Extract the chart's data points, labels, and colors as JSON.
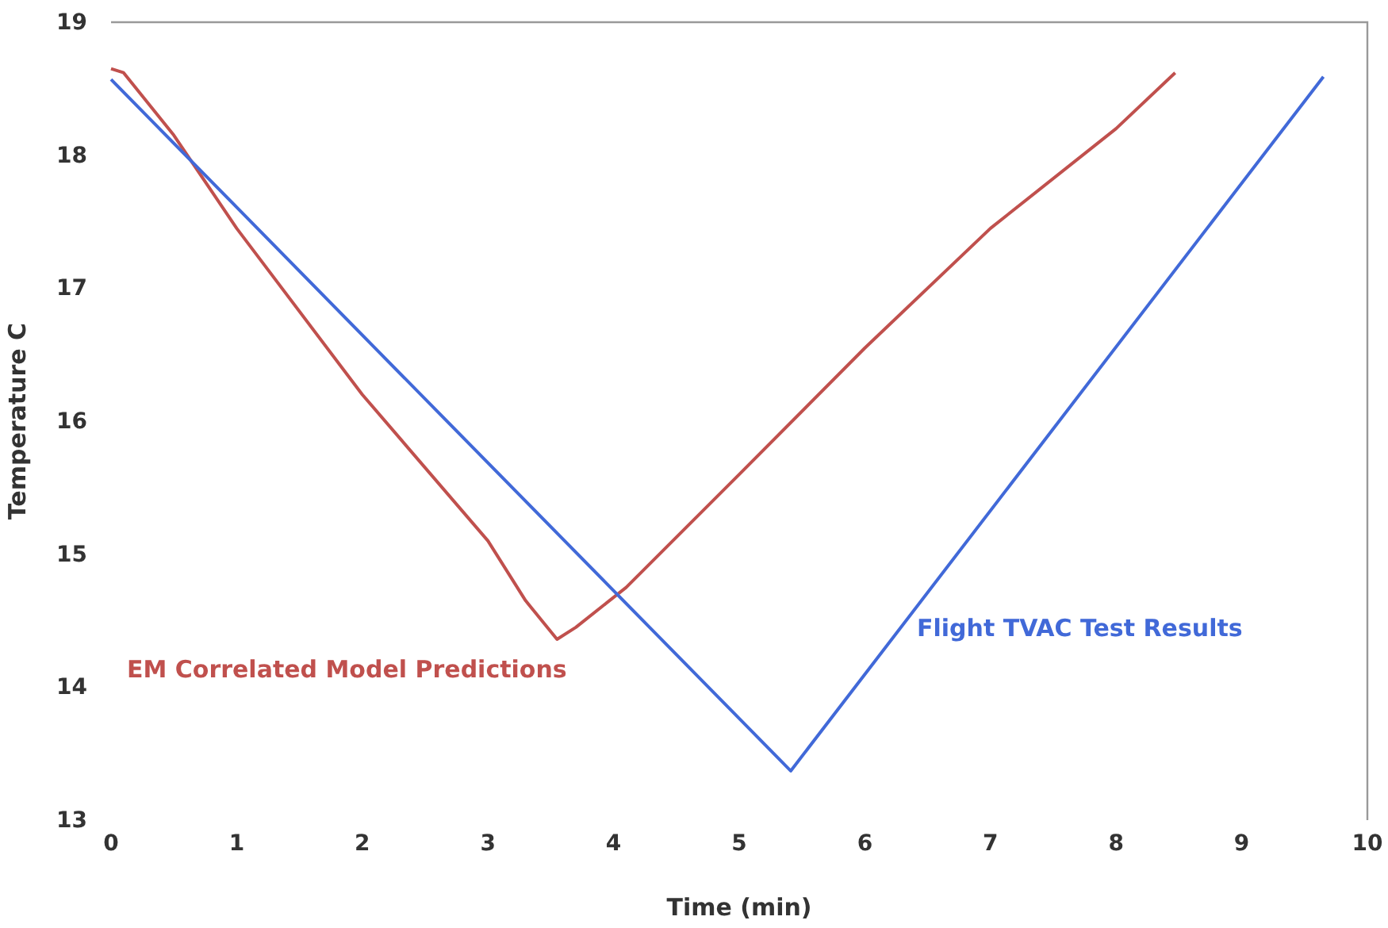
{
  "chart_data": {
    "type": "line",
    "xlabel": "Time (min)",
    "ylabel": "Temperature C",
    "xlim": [
      0,
      10
    ],
    "xticks": [
      0,
      1,
      2,
      3,
      4,
      5,
      6,
      7,
      8,
      9,
      10
    ],
    "ylim": [
      13,
      19
    ],
    "yticks": [
      13,
      14,
      15,
      16,
      17,
      18,
      19
    ],
    "grid": false,
    "legend": false,
    "marker": "none",
    "line_style": "solid",
    "series": [
      {
        "name": "EM Correlated Model Predictions",
        "color": "#c0504d",
        "x": [
          0,
          0.1,
          0.5,
          1,
          2,
          3,
          3.3,
          3.55,
          3.7,
          4.1,
          5,
          6,
          7,
          8,
          8.47
        ],
        "values": [
          18.65,
          18.62,
          18.15,
          17.45,
          16.2,
          15.1,
          14.65,
          14.36,
          14.45,
          14.75,
          15.6,
          16.55,
          17.45,
          18.2,
          18.62
        ]
      },
      {
        "name": "Flight TVAC Test Results",
        "color": "#4169d8",
        "x": [
          0,
          5.41,
          9.65
        ],
        "values": [
          18.57,
          13.37,
          18.59
        ]
      }
    ]
  }
}
